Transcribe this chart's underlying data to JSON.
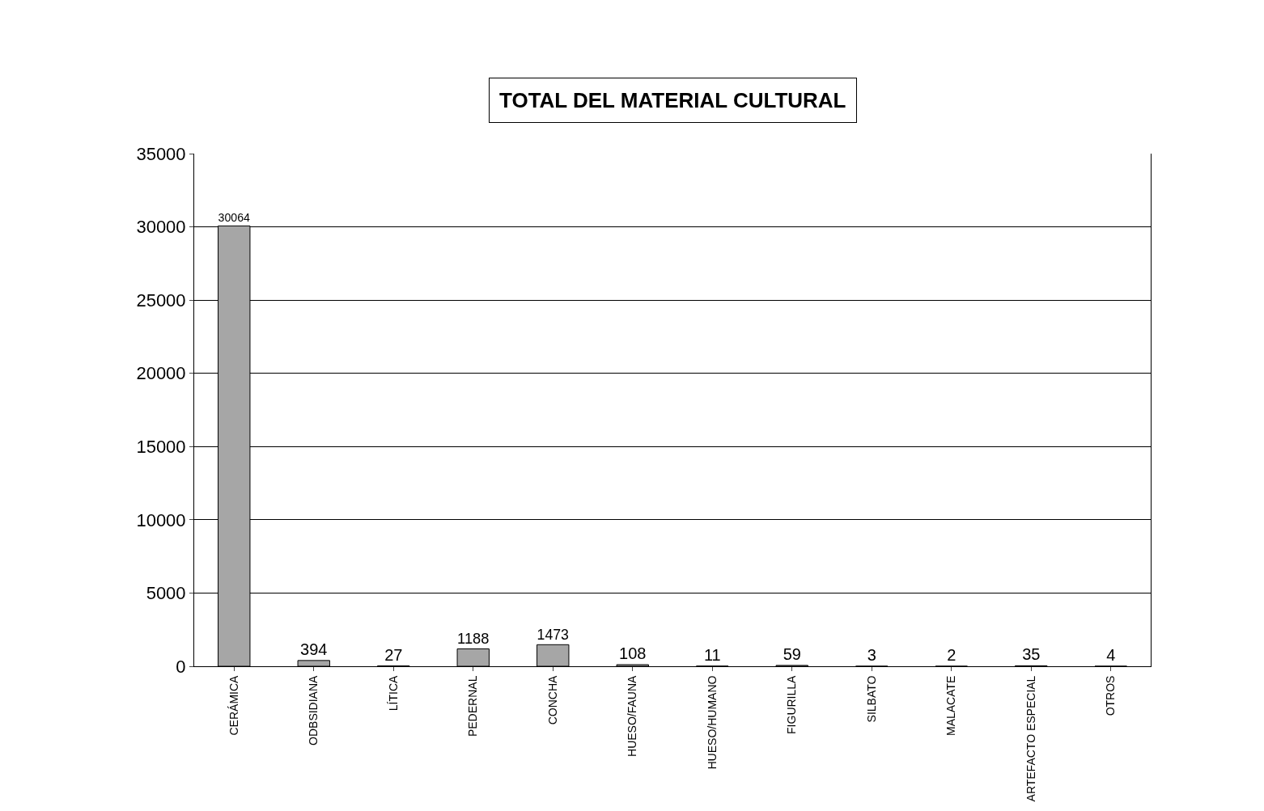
{
  "chart_data": {
    "type": "bar",
    "title": "TOTAL DEL MATERIAL CULTURAL",
    "categories": [
      "CERÁMICA",
      "ODBSIDIANA",
      "LÍTICA",
      "PEDERNAL",
      "CONCHA",
      "HUESO/FAUNA",
      "HUESO/HUMANO",
      "FIGURILLA",
      "SILBATO",
      "MALACATE",
      "ARTEFACTO ESPECIAL",
      "OTROS"
    ],
    "values": [
      30064,
      394,
      27,
      1188,
      1473,
      108,
      11,
      59,
      3,
      2,
      35,
      4
    ],
    "color": "#a6a6a6",
    "ylim": [
      0,
      35000
    ],
    "yticks": [
      0,
      5000,
      10000,
      15000,
      20000,
      25000,
      30000,
      35000
    ],
    "grid": "y",
    "data_labels": true
  }
}
